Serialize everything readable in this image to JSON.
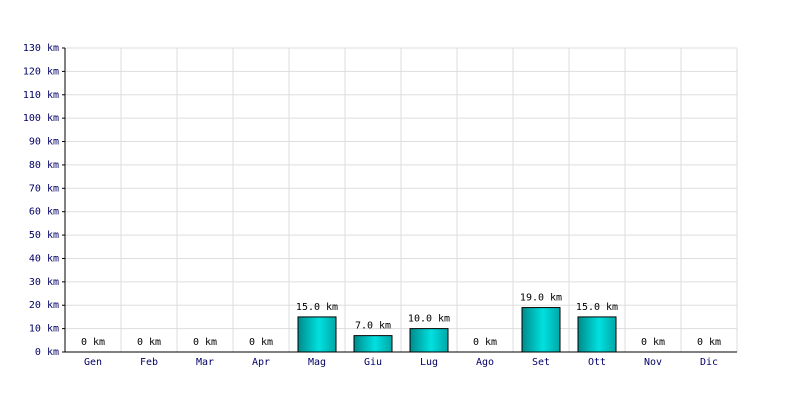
{
  "chart_data": {
    "type": "bar",
    "categories": [
      "Gen",
      "Feb",
      "Mar",
      "Apr",
      "Mag",
      "Giu",
      "Lug",
      "Ago",
      "Set",
      "Ott",
      "Nov",
      "Dic"
    ],
    "values": [
      0,
      0,
      0,
      0,
      15,
      7,
      10,
      0,
      19,
      15,
      0,
      0
    ],
    "value_labels": [
      "0 km",
      "0 km",
      "0 km",
      "0 km",
      "15.0 km",
      "7.0 km",
      "10.0 km",
      "0 km",
      "19.0 km",
      "15.0 km",
      "0 km",
      "0 km"
    ],
    "color": "#00e0e0",
    "ylim": [
      0,
      130
    ],
    "yticks": [
      {
        "value": 0,
        "label": "0 km"
      },
      {
        "value": 10,
        "label": "10 km"
      },
      {
        "value": 20,
        "label": "20 km"
      },
      {
        "value": 30,
        "label": "30 km"
      },
      {
        "value": 40,
        "label": "40 km"
      },
      {
        "value": 50,
        "label": "50 km"
      },
      {
        "value": 60,
        "label": "60 km"
      },
      {
        "value": 70,
        "label": "70 km"
      },
      {
        "value": 80,
        "label": "80 km"
      },
      {
        "value": 90,
        "label": "90 km"
      },
      {
        "value": 100,
        "label": "100 km"
      },
      {
        "value": 110,
        "label": "110 km"
      },
      {
        "value": 120,
        "label": "120 km"
      },
      {
        "value": 130,
        "label": "130 km"
      }
    ],
    "grid": true
  }
}
